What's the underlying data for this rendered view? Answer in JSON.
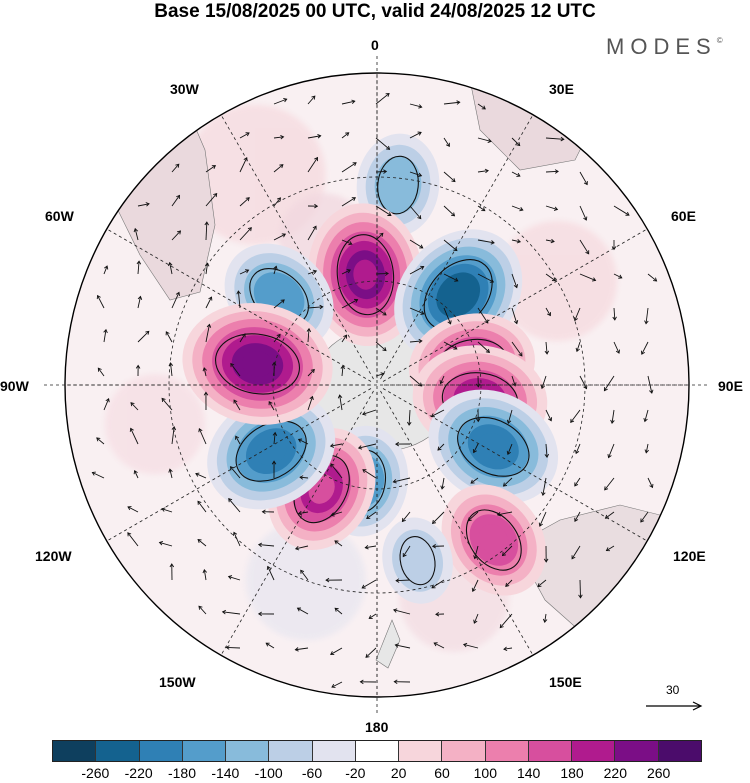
{
  "header": {
    "title": "Base 15/08/2025 00 UTC, valid 24/08/2025 12 UTC",
    "brand": "MODES",
    "brand_mark": "©"
  },
  "map": {
    "projection": "south-polar-stereographic",
    "longitude_labels": [
      "0",
      "30E",
      "60E",
      "90E",
      "120E",
      "150E",
      "180",
      "150W",
      "120W",
      "90W",
      "60W",
      "30W"
    ],
    "anomaly_centers": [
      {
        "name": "low-south-atlantic-north",
        "lon": 6,
        "lat": -32,
        "value": -120
      },
      {
        "name": "high-weddell-north",
        "lon": -6,
        "lat": -58,
        "value": 220
      },
      {
        "name": "low-south-atlantic",
        "lon": -48,
        "lat": -52,
        "value": -160
      },
      {
        "name": "low-indian-west",
        "lon": 42,
        "lat": -55,
        "value": -220
      },
      {
        "name": "high-indian-a",
        "lon": 78,
        "lat": -62,
        "value": 180
      },
      {
        "name": "high-indian-b",
        "lon": 98,
        "lat": -60,
        "value": 200
      },
      {
        "name": "low-indian-east",
        "lon": 118,
        "lat": -52,
        "value": -200
      },
      {
        "name": "high-tasman",
        "lon": 143,
        "lat": -34,
        "value": 160
      },
      {
        "name": "low-ross-north",
        "lon": 167,
        "lat": -38,
        "value": -80
      },
      {
        "name": "low-ross",
        "lon": -172,
        "lat": -62,
        "value": -140
      },
      {
        "name": "high-pacific-south",
        "lon": -152,
        "lat": -56,
        "value": 180
      },
      {
        "name": "low-pacific",
        "lon": -122,
        "lat": -54,
        "value": -200
      },
      {
        "name": "high-bellingshausen",
        "lon": -80,
        "lat": -55,
        "value": 240
      }
    ]
  },
  "legend": {
    "wind_scale_value": "30",
    "colorbar_labels": [
      "-260",
      "-220",
      "-180",
      "-140",
      "-100",
      "-60",
      "-20",
      "20",
      "60",
      "100",
      "140",
      "180",
      "220",
      "260"
    ],
    "colorbar_colors": [
      "#0e3f5e",
      "#14628f",
      "#2f80b5",
      "#549dcb",
      "#88bbdb",
      "#bccfe6",
      "#e2e3ef",
      "#ffffff",
      "#f7d6dc",
      "#f4b1c5",
      "#ec7fad",
      "#d74f9e",
      "#b01b8e",
      "#7b0e86",
      "#4b0c6b"
    ]
  }
}
